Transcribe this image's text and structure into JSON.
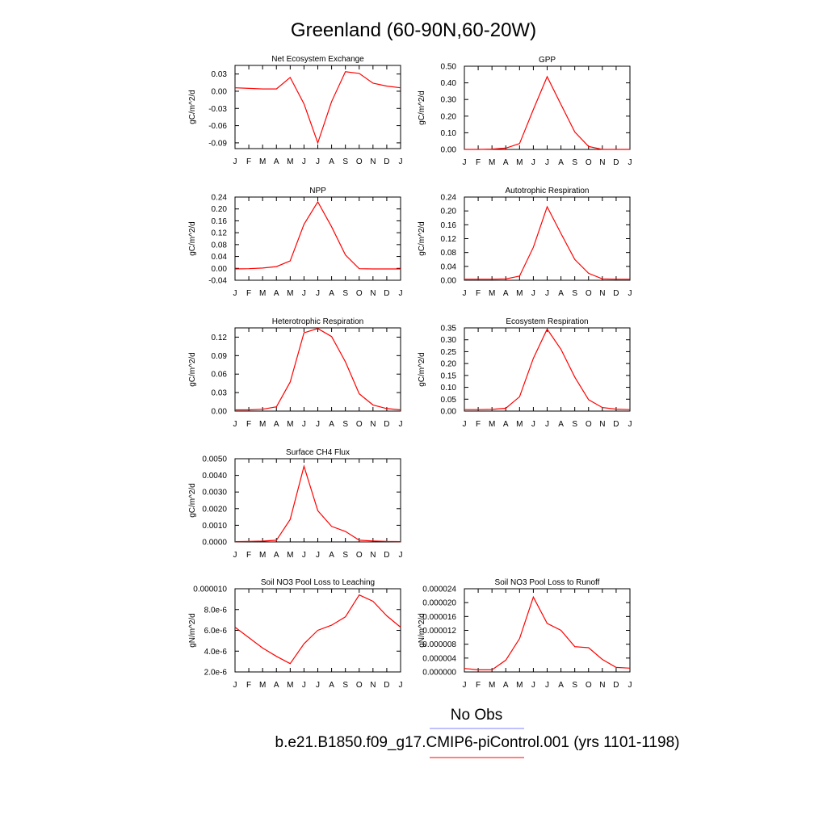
{
  "figure_title": "Greenland (60-90N,60-20W)",
  "legend": {
    "obs_label": "No Obs",
    "obs_color": "#8080ff",
    "model_label": "b.e21.B1850.f09_g17.CMIP6-piControl.001 (yrs 1101-1198)",
    "model_color": "#ff0000"
  },
  "line_color": "#ff0000",
  "chart_data": [
    {
      "type": "line",
      "title": "Net Ecosystem Exchange",
      "ylabel": "gC/m^2/d",
      "x": [
        "J",
        "F",
        "M",
        "A",
        "M",
        "J",
        "J",
        "A",
        "S",
        "O",
        "N",
        "D",
        "J"
      ],
      "ylim": [
        -0.1,
        0.045
      ],
      "yticks": [
        "0.03",
        "0.00",
        "-0.03",
        "-0.06",
        "-0.09"
      ],
      "series": [
        {
          "values": [
            0.006,
            0.005,
            0.004,
            0.004,
            0.024,
            -0.022,
            -0.09,
            -0.018,
            0.034,
            0.031,
            0.014,
            0.009,
            0.006
          ]
        }
      ]
    },
    {
      "type": "line",
      "title": "GPP",
      "ylabel": "gC/m^2/d",
      "x": [
        "J",
        "F",
        "M",
        "A",
        "M",
        "J",
        "J",
        "A",
        "S",
        "O",
        "N",
        "D",
        "J"
      ],
      "ylim": [
        0,
        0.5
      ],
      "yticks": [
        "0.50",
        "0.40",
        "0.30",
        "0.20",
        "0.10",
        "0.00"
      ],
      "series": [
        {
          "values": [
            0.0,
            0.0,
            0.002,
            0.008,
            0.035,
            0.24,
            0.437,
            0.27,
            0.105,
            0.018,
            0.0,
            0.0,
            0.0
          ]
        }
      ]
    },
    {
      "type": "line",
      "title": "NPP",
      "ylabel": "gC/m^2/d",
      "x": [
        "J",
        "F",
        "M",
        "A",
        "M",
        "J",
        "J",
        "A",
        "S",
        "O",
        "N",
        "D",
        "J"
      ],
      "ylim": [
        -0.04,
        0.24
      ],
      "yticks": [
        "0.24",
        "0.20",
        "0.16",
        "0.12",
        "0.08",
        "0.04",
        "0.00",
        "-0.04"
      ],
      "series": [
        {
          "values": [
            -0.002,
            -0.001,
            0.001,
            0.006,
            0.025,
            0.148,
            0.224,
            0.14,
            0.045,
            -0.001,
            -0.002,
            -0.002,
            -0.002
          ]
        }
      ]
    },
    {
      "type": "line",
      "title": "Autotrophic Respiration",
      "ylabel": "gC/m^2/d",
      "x": [
        "J",
        "F",
        "M",
        "A",
        "M",
        "J",
        "J",
        "A",
        "S",
        "O",
        "N",
        "D",
        "J"
      ],
      "ylim": [
        0,
        0.24
      ],
      "yticks": [
        "0.24",
        "0.20",
        "0.16",
        "0.12",
        "0.08",
        "0.04",
        "0.00"
      ],
      "series": [
        {
          "values": [
            0.003,
            0.003,
            0.003,
            0.004,
            0.012,
            0.095,
            0.212,
            0.135,
            0.06,
            0.02,
            0.004,
            0.003,
            0.003
          ]
        }
      ]
    },
    {
      "type": "line",
      "title": "Heterotrophic Respiration",
      "ylabel": "gC/m^2/d",
      "x": [
        "J",
        "F",
        "M",
        "A",
        "M",
        "J",
        "J",
        "A",
        "S",
        "O",
        "N",
        "D",
        "J"
      ],
      "ylim": [
        0,
        0.135
      ],
      "yticks": [
        "0.12",
        "0.09",
        "0.06",
        "0.03",
        "0.00"
      ],
      "series": [
        {
          "values": [
            0.002,
            0.002,
            0.003,
            0.007,
            0.047,
            0.127,
            0.134,
            0.121,
            0.08,
            0.028,
            0.01,
            0.004,
            0.002
          ]
        }
      ]
    },
    {
      "type": "line",
      "title": "Ecosystem Respiration",
      "ylabel": "gC/m^2/d",
      "x": [
        "J",
        "F",
        "M",
        "A",
        "M",
        "J",
        "J",
        "A",
        "S",
        "O",
        "N",
        "D",
        "J"
      ],
      "ylim": [
        0,
        0.35
      ],
      "yticks": [
        "0.35",
        "0.30",
        "0.25",
        "0.20",
        "0.15",
        "0.10",
        "0.05",
        "0.00"
      ],
      "series": [
        {
          "values": [
            0.006,
            0.006,
            0.007,
            0.012,
            0.06,
            0.222,
            0.345,
            0.26,
            0.143,
            0.048,
            0.015,
            0.008,
            0.006
          ]
        }
      ]
    },
    {
      "type": "line",
      "title": "Surface CH4 Flux",
      "ylabel": "gC/m^2/d",
      "x": [
        "J",
        "F",
        "M",
        "A",
        "M",
        "J",
        "J",
        "A",
        "S",
        "O",
        "N",
        "D",
        "J"
      ],
      "ylim": [
        0,
        0.005
      ],
      "yticks": [
        "0.0050",
        "0.0040",
        "0.0030",
        "0.0020",
        "0.0010",
        "0.0000"
      ],
      "series": [
        {
          "values": [
            2e-05,
            3e-05,
            5e-05,
            0.0001,
            0.00135,
            0.00455,
            0.00188,
            0.00093,
            0.00063,
            0.0001,
            6e-05,
            3e-05,
            2e-05
          ]
        }
      ]
    },
    {
      "type": "line",
      "title": "Soil NO3 Pool Loss to Leaching",
      "ylabel": "gN/m^2/d",
      "x": [
        "J",
        "F",
        "M",
        "A",
        "M",
        "J",
        "J",
        "A",
        "S",
        "O",
        "N",
        "D",
        "J"
      ],
      "ylim": [
        2e-06,
        1e-05
      ],
      "yticks": [
        "0.000010",
        "8.0e-6",
        "6.0e-6",
        "4.0e-6",
        "2.0e-6"
      ],
      "series": [
        {
          "values": [
            6.3e-06,
            5.3e-06,
            4.3e-06,
            3.5e-06,
            2.8e-06,
            4.7e-06,
            6e-06,
            6.5e-06,
            7.3e-06,
            9.4e-06,
            8.8e-06,
            7.4e-06,
            6.3e-06
          ]
        }
      ]
    },
    {
      "type": "line",
      "title": "Soil NO3 Pool Loss to Runoff",
      "ylabel": "gN/m^2/d",
      "x": [
        "J",
        "F",
        "M",
        "A",
        "M",
        "J",
        "J",
        "A",
        "S",
        "O",
        "N",
        "D",
        "J"
      ],
      "ylim": [
        0,
        2.4e-05
      ],
      "yticks": [
        "0.000024",
        "0.000020",
        "0.000016",
        "0.000012",
        "0.000008",
        "0.000004",
        "0.000000"
      ],
      "series": [
        {
          "values": [
            1e-06,
            6e-07,
            6e-07,
            3.4e-06,
            9.6e-06,
            2.16e-05,
            1.4e-05,
            1.2e-05,
            7.3e-06,
            7e-06,
            3.6e-06,
            1.3e-06,
            1.1e-06
          ]
        }
      ]
    }
  ]
}
